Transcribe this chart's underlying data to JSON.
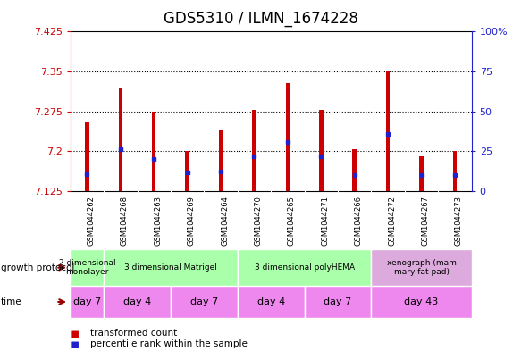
{
  "title": "GDS5310 / ILMN_1674228",
  "samples": [
    "GSM1044262",
    "GSM1044268",
    "GSM1044263",
    "GSM1044269",
    "GSM1044264",
    "GSM1044270",
    "GSM1044265",
    "GSM1044271",
    "GSM1044266",
    "GSM1044272",
    "GSM1044267",
    "GSM1044273"
  ],
  "bar_heights": [
    7.255,
    7.32,
    7.275,
    7.2,
    7.24,
    7.278,
    7.328,
    7.278,
    7.205,
    7.35,
    7.19,
    7.2
  ],
  "blue_dot_positions": [
    7.158,
    7.205,
    7.185,
    7.16,
    7.162,
    7.19,
    7.218,
    7.19,
    7.155,
    7.232,
    7.155,
    7.155
  ],
  "bar_base": 7.125,
  "ylim_left": [
    7.125,
    7.425
  ],
  "ylim_right": [
    0,
    100
  ],
  "yticks_left": [
    7.125,
    7.2,
    7.275,
    7.35,
    7.425
  ],
  "yticks_right": [
    0,
    25,
    50,
    75,
    100
  ],
  "ytick_labels_right": [
    "0",
    "25",
    "50",
    "75",
    "100%"
  ],
  "grid_lines": [
    7.2,
    7.275,
    7.35
  ],
  "bar_color": "#cc0000",
  "blue_dot_color": "#2020cc",
  "growth_protocol_groups": [
    {
      "label": "2 dimensional\nmonolayer",
      "start": 0,
      "end": 1,
      "color": "#aaffaa"
    },
    {
      "label": "3 dimensional Matrigel",
      "start": 1,
      "end": 5,
      "color": "#aaffaa"
    },
    {
      "label": "3 dimensional polyHEMA",
      "start": 5,
      "end": 9,
      "color": "#aaffaa"
    },
    {
      "label": "xenograph (mam\nmary fat pad)",
      "start": 9,
      "end": 12,
      "color": "#ddaadd"
    }
  ],
  "time_groups": [
    {
      "label": "day 7",
      "start": 0,
      "end": 1,
      "color": "#ee88ee"
    },
    {
      "label": "day 4",
      "start": 1,
      "end": 3,
      "color": "#ee88ee"
    },
    {
      "label": "day 7",
      "start": 3,
      "end": 5,
      "color": "#ee88ee"
    },
    {
      "label": "day 4",
      "start": 5,
      "end": 7,
      "color": "#ee88ee"
    },
    {
      "label": "day 7",
      "start": 7,
      "end": 9,
      "color": "#ee88ee"
    },
    {
      "label": "day 43",
      "start": 9,
      "end": 12,
      "color": "#ee88ee"
    }
  ],
  "legend_items": [
    {
      "color": "#cc0000",
      "label": "transformed count"
    },
    {
      "color": "#2020cc",
      "label": "percentile rank within the sample"
    }
  ],
  "background_color": "#ffffff",
  "sample_bg_color": "#cccccc",
  "title_fontsize": 12,
  "tick_fontsize": 8,
  "bar_width": 0.12
}
